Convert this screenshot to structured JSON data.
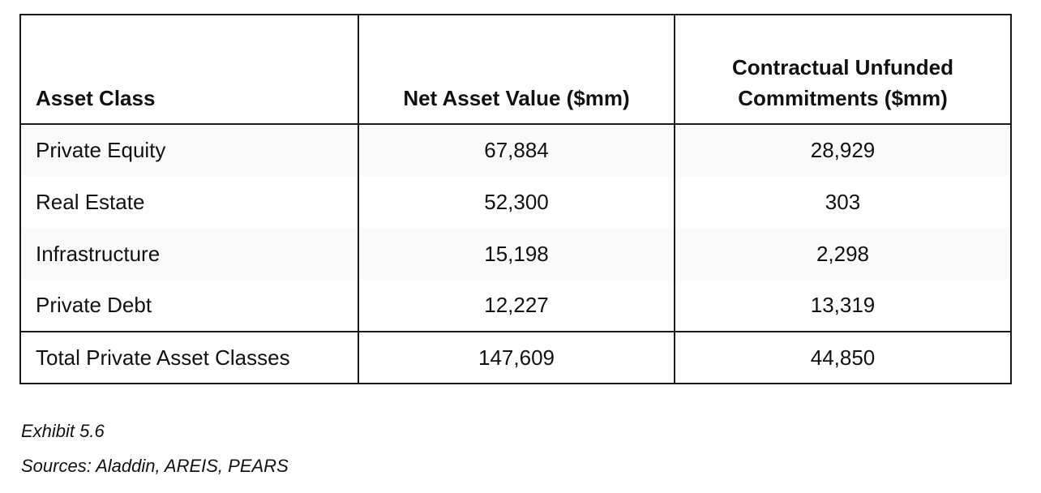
{
  "table": {
    "headers": {
      "asset_class": "Asset Class",
      "nav": "Net Asset Value ($mm)",
      "unfunded_line1": "Contractual Unfunded",
      "unfunded_line2": "Commitments ($mm)"
    },
    "rows": [
      {
        "asset_class": "Private Equity",
        "nav": "67,884",
        "unfunded": "28,929"
      },
      {
        "asset_class": "Real Estate",
        "nav": "52,300",
        "unfunded": "303"
      },
      {
        "asset_class": "Infrastructure",
        "nav": "15,198",
        "unfunded": "2,298"
      },
      {
        "asset_class": "Private Debt",
        "nav": "12,227",
        "unfunded": "13,319"
      }
    ],
    "total": {
      "asset_class": "Total Private Asset Classes",
      "nav": "147,609",
      "unfunded": "44,850"
    }
  },
  "captions": {
    "exhibit": "Exhibit 5.6",
    "sources": "Sources: Aladdin, AREIS, PEARS"
  }
}
